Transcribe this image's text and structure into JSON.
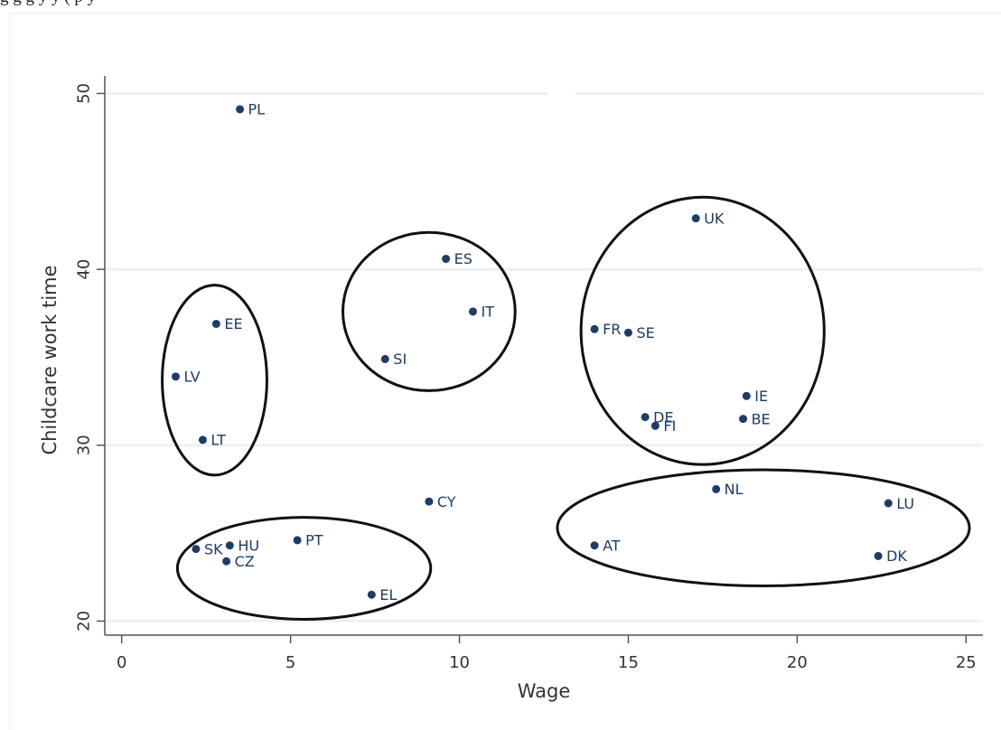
{
  "caption_fragment": "g                         g                                          g y      y (                    p   y   ",
  "chart_data": {
    "type": "scatter",
    "title": "",
    "xlabel": "Wage",
    "ylabel": "Childcare work time",
    "xlim": [
      -0.5,
      25.5
    ],
    "ylim": [
      19.2,
      51
    ],
    "xticks": [
      0,
      5,
      10,
      15,
      20,
      25
    ],
    "yticks": [
      20,
      30,
      40,
      50
    ],
    "grid": true,
    "legend": "none",
    "colors": {
      "marker": "#1d3d66",
      "grid": "#eaf2f3",
      "axis": "#555555",
      "ellipse": "#111111"
    },
    "points": [
      {
        "label": "PL",
        "x": 3.5,
        "y": 49.1
      },
      {
        "label": "UK",
        "x": 17.0,
        "y": 42.9
      },
      {
        "label": "ES",
        "x": 9.6,
        "y": 40.6
      },
      {
        "label": "IT",
        "x": 10.4,
        "y": 37.6
      },
      {
        "label": "EE",
        "x": 2.8,
        "y": 36.9
      },
      {
        "label": "FR",
        "x": 14.0,
        "y": 36.6
      },
      {
        "label": "SE",
        "x": 15.0,
        "y": 36.4
      },
      {
        "label": "SI",
        "x": 7.8,
        "y": 34.9
      },
      {
        "label": "LV",
        "x": 1.6,
        "y": 33.9
      },
      {
        "label": "IE",
        "x": 18.5,
        "y": 32.8
      },
      {
        "label": "DE",
        "x": 15.5,
        "y": 31.6
      },
      {
        "label": "BE",
        "x": 18.4,
        "y": 31.5
      },
      {
        "label": "FI",
        "x": 15.8,
        "y": 31.1
      },
      {
        "label": "LT",
        "x": 2.4,
        "y": 30.3
      },
      {
        "label": "NL",
        "x": 17.6,
        "y": 27.5
      },
      {
        "label": "CY",
        "x": 9.1,
        "y": 26.8
      },
      {
        "label": "LU",
        "x": 22.7,
        "y": 26.7
      },
      {
        "label": "PT",
        "x": 5.2,
        "y": 24.6
      },
      {
        "label": "AT",
        "x": 14.0,
        "y": 24.3
      },
      {
        "label": "HU",
        "x": 3.2,
        "y": 24.3
      },
      {
        "label": "SK",
        "x": 2.2,
        "y": 24.1
      },
      {
        "label": "DK",
        "x": 22.4,
        "y": 23.7
      },
      {
        "label": "CZ",
        "x": 3.1,
        "y": 23.4
      },
      {
        "label": "EL",
        "x": 7.4,
        "y": 21.5
      }
    ],
    "clusters": [
      {
        "members": [
          "EE",
          "LV",
          "LT"
        ],
        "cx": 2.75,
        "cy": 33.7,
        "rx": 1.55,
        "ry": 5.4
      },
      {
        "members": [
          "ES",
          "IT",
          "SI"
        ],
        "cx": 9.1,
        "cy": 37.6,
        "rx": 2.55,
        "ry": 4.5
      },
      {
        "members": [
          "UK",
          "FR",
          "SE",
          "IE",
          "DE",
          "BE",
          "FI"
        ],
        "cx": 17.2,
        "cy": 36.5,
        "rx": 3.6,
        "ry": 7.6
      },
      {
        "members": [
          "SK",
          "HU",
          "CZ",
          "PT",
          "EL"
        ],
        "cx": 5.4,
        "cy": 23.0,
        "rx": 3.75,
        "ry": 2.9
      },
      {
        "members": [
          "NL",
          "AT",
          "LU",
          "DK"
        ],
        "cx": 19.0,
        "cy": 25.3,
        "rx": 6.1,
        "ry": 3.3
      }
    ]
  }
}
